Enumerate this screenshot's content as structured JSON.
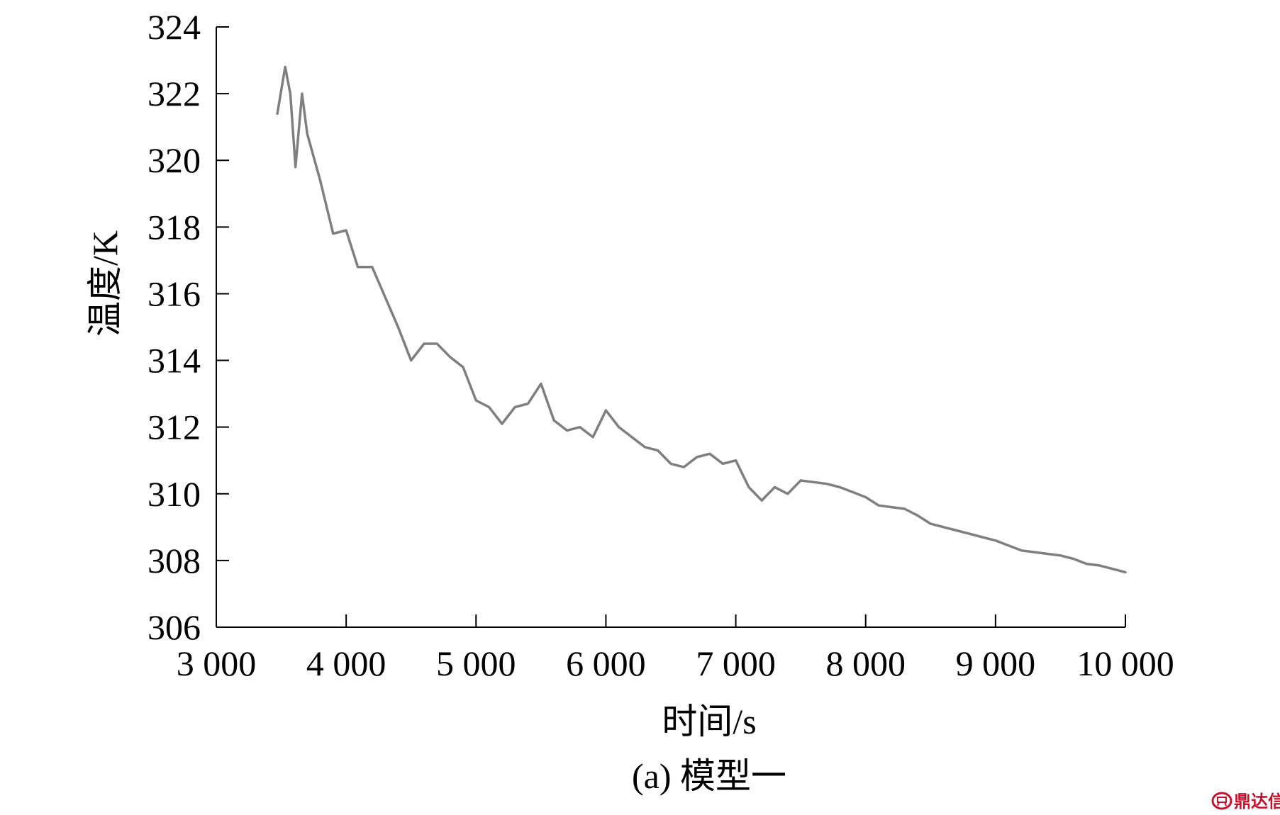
{
  "chart_data": {
    "type": "line",
    "title": "",
    "xlabel": "时间/s",
    "ylabel": "温度/K",
    "caption": "(a) 模型一",
    "xlim": [
      3000,
      10000
    ],
    "ylim": [
      306,
      324
    ],
    "x_ticks": [
      3000,
      4000,
      5000,
      6000,
      7000,
      8000,
      9000,
      10000
    ],
    "x_tick_labels": [
      "3 000",
      "4 000",
      "5 000",
      "6 000",
      "7 000",
      "8 000",
      "9 000",
      "10 000"
    ],
    "y_ticks": [
      306,
      308,
      310,
      312,
      314,
      316,
      318,
      320,
      322,
      324
    ],
    "y_tick_labels": [
      "306",
      "308",
      "310",
      "312",
      "314",
      "316",
      "318",
      "320",
      "322",
      "324"
    ],
    "grid": false,
    "legend": "none",
    "line_color": "#7f7f7f",
    "series": [
      {
        "x": [
          3470,
          3530,
          3570,
          3610,
          3660,
          3700,
          3800,
          3900,
          4000,
          4090,
          4200,
          4300,
          4400,
          4500,
          4600,
          4700,
          4800,
          4900,
          5000,
          5100,
          5200,
          5300,
          5400,
          5500,
          5600,
          5700,
          5800,
          5900,
          6000,
          6100,
          6200,
          6300,
          6400,
          6500,
          6600,
          6700,
          6800,
          6900,
          7000,
          7100,
          7200,
          7300,
          7400,
          7500,
          7600,
          7700,
          7800,
          7900,
          8000,
          8100,
          8200,
          8300,
          8400,
          8500,
          8600,
          8700,
          8800,
          8900,
          9000,
          9100,
          9200,
          9300,
          9400,
          9500,
          9600,
          9700,
          9800,
          9900,
          10000
        ],
        "values": [
          321.4,
          322.8,
          322.0,
          319.8,
          322.0,
          320.8,
          319.4,
          317.8,
          317.9,
          316.8,
          316.8,
          315.9,
          315.0,
          314.0,
          314.5,
          314.5,
          314.1,
          313.8,
          312.8,
          312.6,
          312.1,
          312.6,
          312.7,
          313.3,
          312.2,
          311.9,
          312.0,
          311.7,
          312.5,
          312.0,
          311.7,
          311.4,
          311.3,
          310.9,
          310.8,
          311.1,
          311.2,
          310.9,
          311.0,
          310.2,
          309.8,
          310.2,
          310.0,
          310.4,
          310.35,
          310.3,
          310.2,
          310.05,
          309.9,
          309.65,
          309.6,
          309.55,
          309.35,
          309.1,
          309.0,
          308.9,
          308.8,
          308.7,
          308.6,
          308.45,
          308.3,
          308.25,
          308.2,
          308.15,
          308.05,
          307.9,
          307.85,
          307.75,
          307.65
        ]
      }
    ]
  },
  "watermark": {
    "icon": "ding-seal-icon",
    "text": "鼎达信"
  }
}
